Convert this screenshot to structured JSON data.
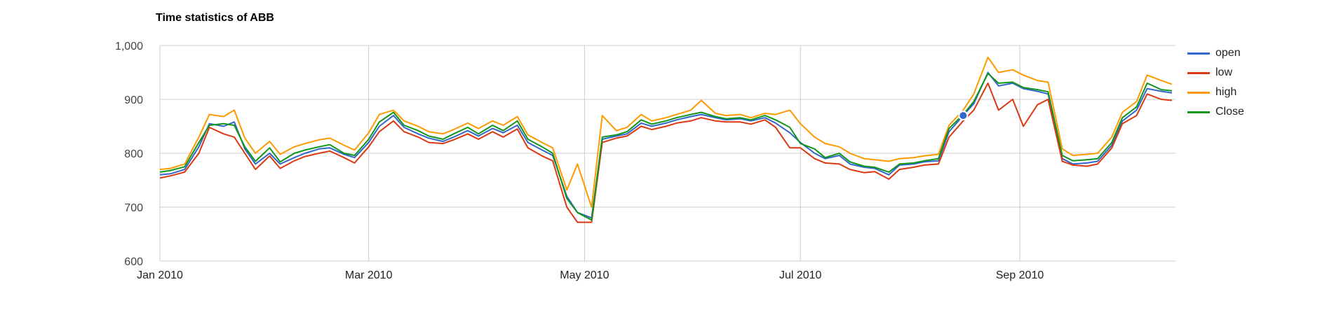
{
  "chart_data": {
    "type": "line",
    "title": "Time statistics of ABB",
    "xlabel": "",
    "ylabel": "",
    "x_start": "2010-01-01",
    "x_end": "2010-10-15",
    "ylim": [
      600,
      1000
    ],
    "y_ticks": [
      {
        "value": 600,
        "label": "600"
      },
      {
        "value": 700,
        "label": "700"
      },
      {
        "value": 800,
        "label": "800"
      },
      {
        "value": 900,
        "label": "900"
      },
      {
        "value": 1000,
        "label": "1,000"
      }
    ],
    "x_ticks": [
      {
        "date": "2010-01-01",
        "label": "Jan 2010"
      },
      {
        "date": "2010-03-01",
        "label": "Mar 2010"
      },
      {
        "date": "2010-05-01",
        "label": "May 2010"
      },
      {
        "date": "2010-07-01",
        "label": "Jul 2010"
      },
      {
        "date": "2010-09-01",
        "label": "Sep 2010"
      }
    ],
    "grid": true,
    "legend_position": "right",
    "x": [
      "2010-01-01",
      "2010-01-04",
      "2010-01-08",
      "2010-01-12",
      "2010-01-15",
      "2010-01-19",
      "2010-01-22",
      "2010-01-25",
      "2010-01-28",
      "2010-02-01",
      "2010-02-04",
      "2010-02-08",
      "2010-02-11",
      "2010-02-15",
      "2010-02-18",
      "2010-02-22",
      "2010-02-25",
      "2010-03-01",
      "2010-03-04",
      "2010-03-08",
      "2010-03-11",
      "2010-03-15",
      "2010-03-18",
      "2010-03-22",
      "2010-03-25",
      "2010-03-29",
      "2010-04-01",
      "2010-04-05",
      "2010-04-08",
      "2010-04-12",
      "2010-04-15",
      "2010-04-19",
      "2010-04-22",
      "2010-04-26",
      "2010-04-29",
      "2010-05-03",
      "2010-05-06",
      "2010-05-10",
      "2010-05-13",
      "2010-05-17",
      "2010-05-20",
      "2010-05-24",
      "2010-05-27",
      "2010-05-31",
      "2010-06-03",
      "2010-06-07",
      "2010-06-10",
      "2010-06-14",
      "2010-06-17",
      "2010-06-21",
      "2010-06-24",
      "2010-06-28",
      "2010-07-01",
      "2010-07-05",
      "2010-07-08",
      "2010-07-12",
      "2010-07-15",
      "2010-07-19",
      "2010-07-22",
      "2010-07-26",
      "2010-07-29",
      "2010-08-02",
      "2010-08-05",
      "2010-08-09",
      "2010-08-12",
      "2010-08-16",
      "2010-08-19",
      "2010-08-23",
      "2010-08-26",
      "2010-08-30",
      "2010-09-02",
      "2010-09-06",
      "2010-09-09",
      "2010-09-13",
      "2010-09-16",
      "2010-09-20",
      "2010-09-23",
      "2010-09-27",
      "2010-09-30",
      "2010-10-04",
      "2010-10-07",
      "2010-10-11",
      "2010-10-14"
    ],
    "series": [
      {
        "name": "open",
        "color": "#3366cc",
        "values": [
          760,
          762,
          770,
          812,
          855,
          850,
          858,
          808,
          780,
          800,
          780,
          792,
          800,
          808,
          810,
          798,
          792,
          820,
          850,
          870,
          848,
          836,
          828,
          822,
          830,
          842,
          832,
          846,
          838,
          852,
          820,
          806,
          796,
          720,
          690,
          680,
          826,
          832,
          836,
          856,
          850,
          856,
          862,
          868,
          872,
          866,
          862,
          864,
          860,
          866,
          856,
          838,
          820,
          800,
          790,
          796,
          780,
          774,
          772,
          760,
          778,
          780,
          784,
          786,
          840,
          870,
          892,
          950,
          925,
          930,
          920,
          915,
          910,
          790,
          780,
          782,
          785,
          815,
          860,
          880,
          920,
          915,
          912
        ]
      },
      {
        "name": "low",
        "color": "#dc3912",
        "values": [
          754,
          758,
          765,
          800,
          848,
          836,
          830,
          800,
          770,
          795,
          772,
          786,
          794,
          800,
          804,
          792,
          782,
          812,
          840,
          860,
          840,
          830,
          820,
          818,
          825,
          836,
          826,
          840,
          830,
          845,
          810,
          795,
          786,
          700,
          672,
          672,
          820,
          828,
          832,
          850,
          844,
          850,
          856,
          860,
          866,
          860,
          858,
          858,
          854,
          862,
          848,
          810,
          810,
          790,
          782,
          780,
          770,
          764,
          766,
          752,
          770,
          774,
          778,
          780,
          830,
          860,
          880,
          930,
          880,
          900,
          850,
          890,
          900,
          785,
          778,
          776,
          780,
          810,
          855,
          870,
          910,
          900,
          898
        ]
      },
      {
        "name": "high",
        "color": "#ff9900",
        "values": [
          770,
          772,
          780,
          830,
          872,
          868,
          880,
          828,
          800,
          822,
          798,
          812,
          818,
          825,
          828,
          815,
          806,
          838,
          872,
          880,
          860,
          850,
          840,
          836,
          844,
          856,
          846,
          860,
          852,
          868,
          834,
          820,
          810,
          732,
          780,
          700,
          870,
          842,
          848,
          872,
          860,
          866,
          872,
          880,
          898,
          874,
          870,
          872,
          866,
          874,
          872,
          880,
          855,
          830,
          818,
          812,
          800,
          790,
          788,
          785,
          790,
          792,
          795,
          798,
          852,
          880,
          910,
          978,
          950,
          955,
          945,
          935,
          932,
          808,
          796,
          798,
          800,
          830,
          876,
          896,
          945,
          935,
          928
        ]
      },
      {
        "name": "Close",
        "color": "#109618",
        "values": [
          765,
          768,
          775,
          820,
          852,
          855,
          852,
          812,
          785,
          810,
          784,
          800,
          806,
          812,
          816,
          800,
          796,
          826,
          858,
          876,
          852,
          842,
          832,
          826,
          836,
          848,
          836,
          852,
          842,
          860,
          826,
          812,
          800,
          716,
          690,
          676,
          830,
          834,
          840,
          862,
          854,
          860,
          866,
          872,
          876,
          868,
          864,
          866,
          862,
          870,
          862,
          848,
          818,
          808,
          792,
          800,
          784,
          776,
          774,
          765,
          780,
          782,
          786,
          790,
          846,
          872,
          896,
          948,
          930,
          932,
          922,
          918,
          914,
          796,
          786,
          788,
          790,
          820,
          866,
          886,
          930,
          918,
          916
        ]
      }
    ]
  }
}
